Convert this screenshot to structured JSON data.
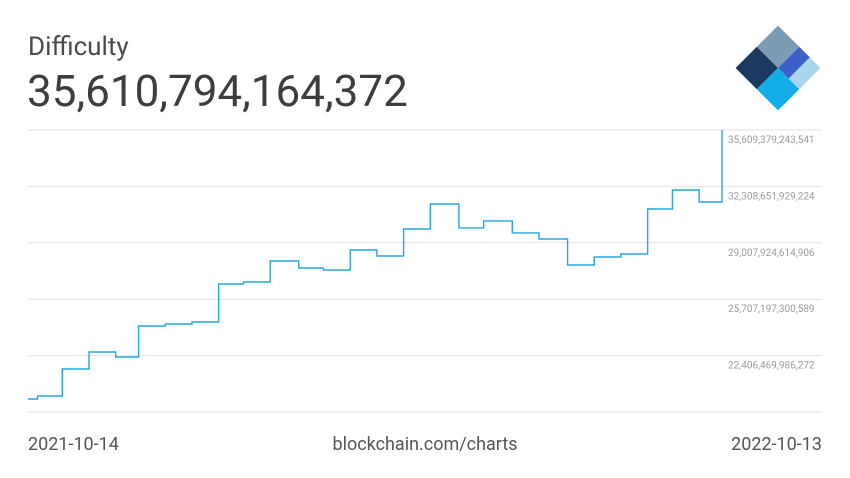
{
  "chart_data": {
    "type": "step-line",
    "title": "Difficulty",
    "subtitle": "35,610,794,164,372",
    "source": "blockchain.com/charts",
    "xlim": [
      "2021-10-14",
      "2022-10-13"
    ],
    "x": [
      "2021-10-14",
      "2021-10-19",
      "2021-11-01",
      "2021-11-15",
      "2021-11-29",
      "2021-12-11",
      "2021-12-25",
      "2022-01-08",
      "2022-01-22",
      "2022-02-04",
      "2022-02-18",
      "2022-03-05",
      "2022-03-18",
      "2022-04-01",
      "2022-04-15",
      "2022-04-29",
      "2022-05-13",
      "2022-05-28",
      "2022-06-10",
      "2022-06-25",
      "2022-07-09",
      "2022-07-24",
      "2022-08-07",
      "2022-08-21",
      "2022-09-04",
      "2022-09-17",
      "2022-10-01",
      "2022-10-13"
    ],
    "series": [
      {
        "color": "#25a7d9",
        "values": [
          19866000000000,
          20042000000000,
          21622000000000,
          22617000000000,
          22324000000000,
          24139000000000,
          24256000000000,
          24373000000000,
          26597000000000,
          26714000000000,
          27943000000000,
          27533000000000,
          27416000000000,
          28587000000000,
          28236000000000,
          29816000000000,
          31279000000000,
          29875000000000,
          30285000000000,
          29583000000000,
          29230000000000,
          27709000000000,
          28177000000000,
          28353000000000,
          30986000000000,
          32098000000000,
          31396000000000,
          35610794164372
        ]
      }
    ],
    "ylim": [
      19105742671955,
      35609379243541
    ],
    "yticks": [
      {
        "value": 22406469986272,
        "label": "22,406,469,986,272"
      },
      {
        "value": 25707197300589,
        "label": "25,707,197,300,589"
      },
      {
        "value": 29007924614906,
        "label": "29,007,924,614,906"
      },
      {
        "value": 32308651929224,
        "label": "32,308,651,929,224"
      },
      {
        "value": 35609379243541,
        "label": "35,609,379,243,541"
      }
    ],
    "grid": true
  }
}
